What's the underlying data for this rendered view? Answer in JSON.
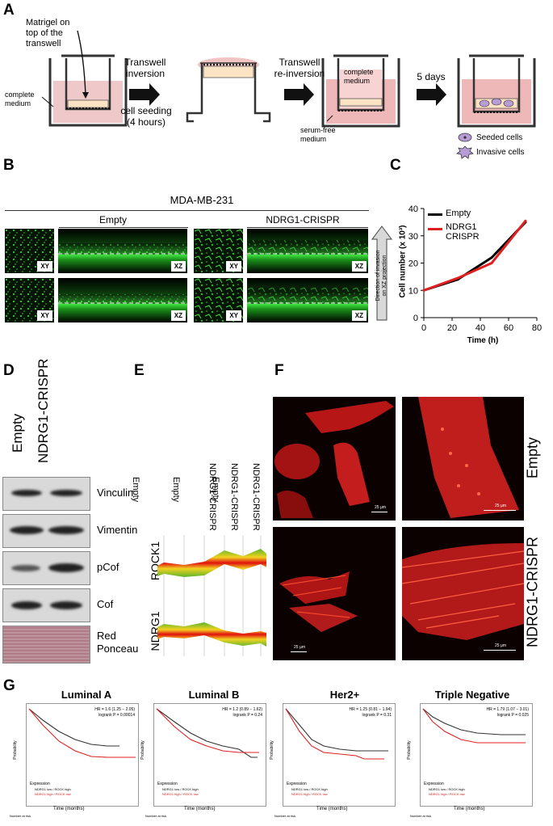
{
  "panel_a": {
    "label": "A",
    "matrigel_note": "Matrigel on\ntop of the\ntranswell",
    "complete_medium_left": "complete\nmedium",
    "step1_top": "Transwell\ninversion",
    "step1_bottom": "cell seeding\n(4 hours)",
    "step2_top": "Transwell\nre-inversion",
    "complete_medium_inner": "complete\nmedium",
    "serum_free": "serum-free\nmedium",
    "step3": "5 days",
    "legend_seeded": "Seeded cells",
    "legend_invasive": "Invasive cells"
  },
  "panel_b": {
    "label": "B",
    "title": "MDA-MB-231",
    "group1": "Empty",
    "group2": "NDRG1-CRISPR",
    "tag_xy": "XY",
    "tag_xz": "XZ",
    "arrow_text": "Direction of invasion\non XZ projection"
  },
  "panel_c": {
    "label": "C",
    "ylabel": "Cell number (x 10³)",
    "xlabel": "Time (h)",
    "legend_empty": "Empty",
    "legend_ndrg1": "NDRG1\nCRISPR",
    "colors": {
      "empty": "#000000",
      "ndrg1": "#e02020"
    }
  },
  "chart_data": {
    "type": "line",
    "xlabel": "Time (h)",
    "ylabel": "Cell number (x 10³)",
    "xlim": [
      0,
      80
    ],
    "ylim": [
      0,
      40
    ],
    "xticks": [
      0,
      20,
      40,
      60,
      80
    ],
    "yticks": [
      0,
      10,
      20,
      30,
      40
    ],
    "legend_position": "top-left",
    "series": [
      {
        "name": "Empty",
        "x": [
          0,
          24,
          48,
          72
        ],
        "y": [
          10,
          14,
          22,
          35
        ]
      },
      {
        "name": "NDRG1 CRISPR",
        "x": [
          0,
          24,
          48,
          72
        ],
        "y": [
          10,
          14.5,
          20,
          35.5
        ]
      }
    ]
  },
  "panel_d": {
    "label": "D",
    "lane1": "Empty",
    "lane2": "NDRG1-CRISPR",
    "rows": [
      "Vinculin",
      "Vimentin",
      "pCof",
      "Cof",
      "Red\nPonceau"
    ]
  },
  "panel_e": {
    "label": "E",
    "columns": [
      "Empty",
      "Empty",
      "Empty",
      "NDRG1-CRISPR",
      "NDRG1-CRISPR",
      "NDRG1-CRISPR"
    ],
    "genes": [
      "ROCK1",
      "NDRG1"
    ]
  },
  "panel_f": {
    "label": "F",
    "row1": "Empty",
    "row2": "NDRG1-CRISPR",
    "scale": "25 µm"
  },
  "panel_g": {
    "label": "G",
    "plots": [
      {
        "title": "Luminal A",
        "hr": "HR = 1.6 (1.25 − 2.05)",
        "p": "logrank P = 0.00014"
      },
      {
        "title": "Luminal B",
        "hr": "HR = 1.2 (0.89 − 1.62)",
        "p": "logrank P = 0.24"
      },
      {
        "title": "Her2+",
        "hr": "HR = 1.25 (0.81 − 1.94)",
        "p": "logrank P = 0.31"
      },
      {
        "title": "Triple Negative",
        "hr": "HR = 1.79 (1.07 − 3.01)",
        "p": "logrank P = 0.025"
      }
    ],
    "ylabel": "Probability",
    "xlabel": "Time (months)",
    "expression": "Expression",
    "legend_low": "NDRG1 low / ROCK high",
    "legend_high": "NDRG1 high / ROCK low",
    "at_risk": "Number at risk"
  }
}
